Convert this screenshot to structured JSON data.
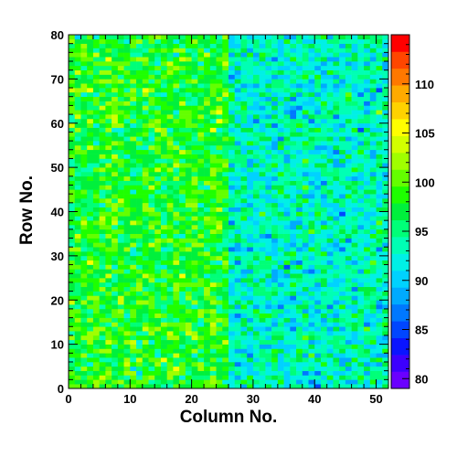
{
  "chart_data": {
    "type": "heatmap",
    "xlabel": "Column No.",
    "ylabel": "Row No.",
    "xlim": [
      0,
      52
    ],
    "ylim": [
      0,
      80
    ],
    "x_ticks": [
      0,
      10,
      20,
      30,
      40,
      50
    ],
    "y_ticks": [
      0,
      10,
      20,
      30,
      40,
      50,
      60,
      70,
      80
    ],
    "n_columns": 52,
    "n_rows": 80,
    "colorbar": {
      "min": 79,
      "max": 115,
      "tick_values": [
        80,
        85,
        90,
        95,
        100,
        105,
        110
      ],
      "tick_labels": [
        "80",
        "85",
        "90",
        "95",
        "100",
        "105",
        "110"
      ]
    },
    "cell_value_description": {
      "left_region_cols_0_25_mean": 98,
      "right_region_cols_26_52_mean": 93,
      "spread": 4
    },
    "palette": [
      "#6a00ff",
      "#3c00ff",
      "#0a14ff",
      "#0046ff",
      "#0078ff",
      "#00aaff",
      "#00d2ff",
      "#00f0e6",
      "#00ffb4",
      "#00ff78",
      "#00f03c",
      "#1eff00",
      "#64ff00",
      "#a0ff00",
      "#d2ff00",
      "#ffff00",
      "#ffd200",
      "#ffaa00",
      "#ff7800",
      "#ff4600",
      "#ff0000"
    ]
  }
}
